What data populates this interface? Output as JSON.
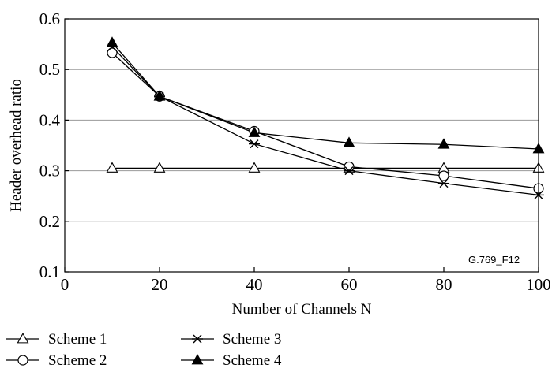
{
  "figure_id": "G.769_F12",
  "chart_data": {
    "type": "line",
    "title": "",
    "xlabel": "Number of Channels N",
    "ylabel": "Header overhead ratio",
    "xlim": [
      0,
      100
    ],
    "ylim": [
      0.1,
      0.6
    ],
    "x_ticks": [
      0,
      20,
      40,
      60,
      80,
      100
    ],
    "y_ticks": [
      0.1,
      0.2,
      0.3,
      0.4,
      0.5,
      0.6
    ],
    "x_tick_labels": [
      "0",
      "20",
      "40",
      "60",
      "80",
      "100"
    ],
    "y_tick_labels": [
      "0.1",
      "0.2",
      "0.3",
      "0.4",
      "0.5",
      "0.6"
    ],
    "grid": "horizontal",
    "legend_position": "bottom",
    "series": [
      {
        "name": "Scheme 1",
        "marker": "open-triangle",
        "x": [
          10,
          20,
          40,
          60,
          80,
          100
        ],
        "y": [
          0.305,
          0.305,
          0.305,
          0.305,
          0.305,
          0.305
        ]
      },
      {
        "name": "Scheme 2",
        "marker": "open-circle",
        "x": [
          10,
          20,
          40,
          60,
          80,
          100
        ],
        "y": [
          0.533,
          0.447,
          0.378,
          0.308,
          0.29,
          0.265
        ]
      },
      {
        "name": "Scheme 3",
        "marker": "asterisk",
        "x": [
          10,
          20,
          40,
          60,
          80,
          100
        ],
        "y": [
          0.545,
          0.447,
          0.353,
          0.3,
          0.275,
          0.252
        ]
      },
      {
        "name": "Scheme 4",
        "marker": "filled-triangle",
        "x": [
          10,
          20,
          40,
          60,
          80,
          100
        ],
        "y": [
          0.553,
          0.447,
          0.375,
          0.355,
          0.352,
          0.343
        ]
      }
    ]
  }
}
